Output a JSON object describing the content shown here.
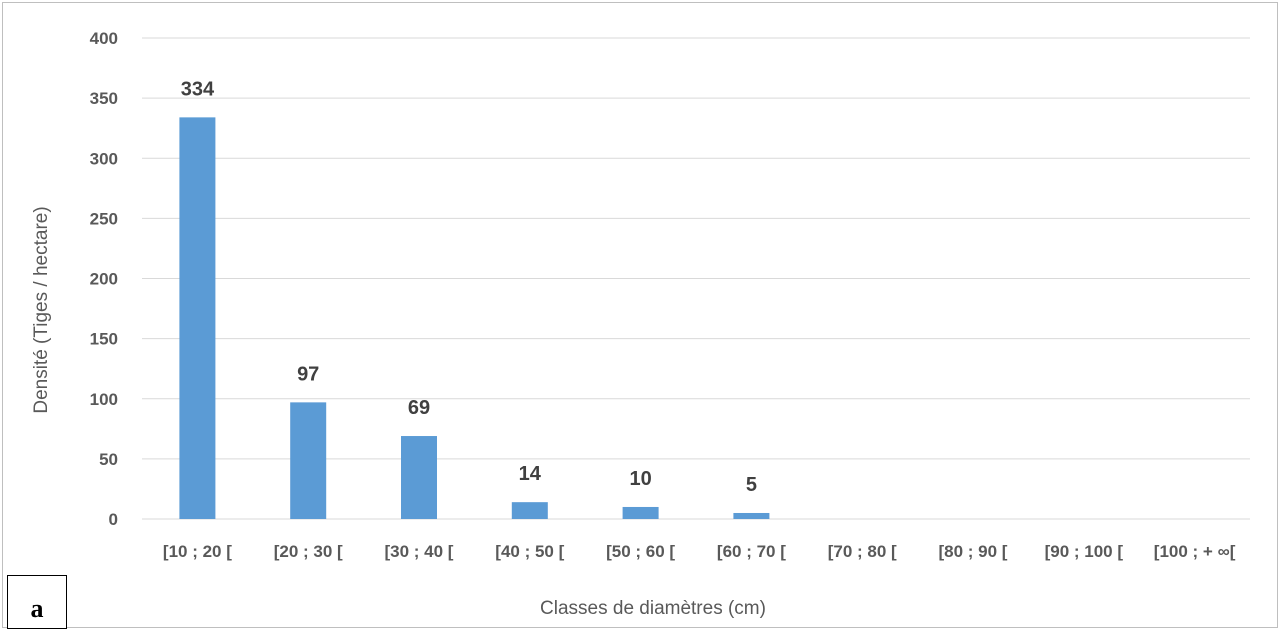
{
  "panel_label": "a",
  "chart_data": {
    "type": "bar",
    "categories": [
      "[10 ; 20 [",
      "[20 ; 30 [",
      "[30 ; 40 [",
      "[40 ; 50 [",
      "[50 ; 60 [",
      "[60 ; 70 [",
      "[70 ; 80 [",
      "[80 ; 90 [",
      "[90 ; 100 [",
      "[100 ; + ∞["
    ],
    "values": [
      334,
      97,
      69,
      14,
      10,
      5,
      null,
      null,
      null,
      null
    ],
    "data_labels": [
      "334",
      "97",
      "69",
      "14",
      "10",
      "5",
      "",
      "",
      "",
      ""
    ],
    "xlabel": "Classes de diamètres (cm)",
    "ylabel": "Densité (Tiges / hectare)",
    "ylim": [
      0,
      400
    ],
    "yticks": [
      0,
      50,
      100,
      150,
      200,
      250,
      300,
      350,
      400
    ],
    "grid": true,
    "bar_color": "#5b9bd5",
    "grid_color": "#d9d9d9"
  }
}
